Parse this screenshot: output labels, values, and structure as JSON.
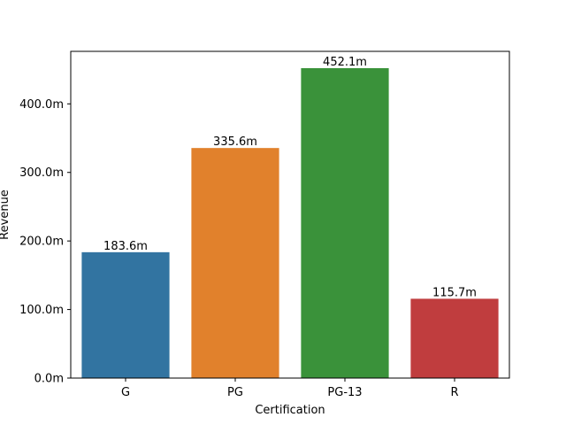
{
  "chart_data": {
    "type": "bar",
    "categories": [
      "G",
      "PG",
      "PG-13",
      "R"
    ],
    "values": [
      183.6,
      335.6,
      452.1,
      115.7
    ],
    "value_labels": [
      "183.6m",
      "335.6m",
      "452.1m",
      "115.7m"
    ],
    "colors": [
      "#3274a1",
      "#e1812c",
      "#3a923a",
      "#c03d3e"
    ],
    "xlabel": "Certification",
    "ylabel": "Revenue",
    "ylim": [
      0,
      476.6
    ],
    "y_ticks": [
      0,
      100,
      200,
      300,
      400
    ],
    "y_tick_labels": [
      "0.0m",
      "100.0m",
      "200.0m",
      "300.0m",
      "400.0m"
    ],
    "grid": false,
    "legend": "none"
  }
}
